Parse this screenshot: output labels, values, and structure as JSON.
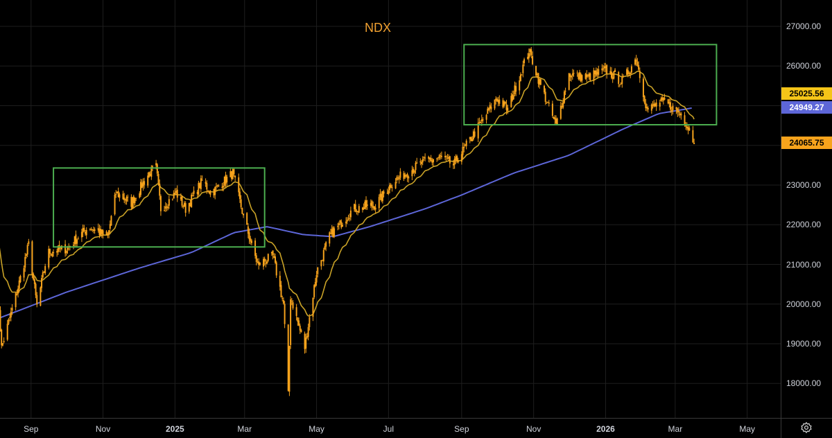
{
  "chart_data": {
    "type": "candlestick",
    "title": "NDX",
    "y_axis": {
      "ticks": [
        "27000.00",
        "26000.00",
        "25000.00",
        "24000.00",
        "23000.00",
        "22000.00",
        "21000.00",
        "20000.00",
        "19000.00",
        "18000.00"
      ],
      "min": 17100,
      "max": 27500
    },
    "x_axis": {
      "ticks": [
        {
          "label": "Sep",
          "date": "2024-09-01"
        },
        {
          "label": "Nov",
          "date": "2024-11-01"
        },
        {
          "label": "2025",
          "date": "2025-01-01",
          "bold": true
        },
        {
          "label": "Mar",
          "date": "2025-03-01"
        },
        {
          "label": "May",
          "date": "2025-05-01"
        },
        {
          "label": "Jul",
          "date": "2025-07-01"
        },
        {
          "label": "Sep",
          "date": "2025-09-01"
        },
        {
          "label": "Nov",
          "date": "2025-11-01"
        },
        {
          "label": "2026",
          "date": "2026-01-01",
          "bold": true
        },
        {
          "label": "Mar",
          "date": "2026-03-01"
        },
        {
          "label": "May",
          "date": "2026-05-01"
        }
      ],
      "start_date": "2024-08-01",
      "end_date": "2026-05-20"
    },
    "price_anchors": [
      [
        "2024-08-01",
        21800
      ],
      [
        "2024-08-07",
        18900
      ],
      [
        "2024-08-20",
        20300
      ],
      [
        "2024-08-30",
        21500
      ],
      [
        "2024-09-06",
        19950
      ],
      [
        "2024-09-15",
        21300
      ],
      [
        "2024-10-01",
        21400
      ],
      [
        "2024-10-20",
        21950
      ],
      [
        "2024-11-05",
        21700
      ],
      [
        "2024-11-12",
        22800
      ],
      [
        "2024-11-25",
        22550
      ],
      [
        "2024-12-10",
        23300
      ],
      [
        "2024-12-16",
        23450
      ],
      [
        "2024-12-20",
        22400
      ],
      [
        "2025-01-02",
        22800
      ],
      [
        "2025-01-10",
        22400
      ],
      [
        "2025-01-24",
        23100
      ],
      [
        "2025-02-01",
        22800
      ],
      [
        "2025-02-19",
        23300
      ],
      [
        "2025-03-01",
        22100
      ],
      [
        "2025-03-12",
        21000
      ],
      [
        "2025-03-25",
        21200
      ],
      [
        "2025-04-03",
        20000
      ],
      [
        "2025-04-07",
        17700
      ],
      [
        "2025-04-09",
        20200
      ],
      [
        "2025-04-21",
        18900
      ],
      [
        "2025-05-01",
        20800
      ],
      [
        "2025-05-12",
        21700
      ],
      [
        "2025-06-01",
        22400
      ],
      [
        "2025-06-20",
        22500
      ],
      [
        "2025-07-05",
        23100
      ],
      [
        "2025-08-01",
        23600
      ],
      [
        "2025-08-15",
        23700
      ],
      [
        "2025-08-25",
        23500
      ],
      [
        "2025-09-05",
        24000
      ],
      [
        "2025-10-01",
        25200
      ],
      [
        "2025-10-10",
        24900
      ],
      [
        "2025-10-28",
        26400
      ],
      [
        "2025-11-07",
        25500
      ],
      [
        "2025-11-20",
        24500
      ],
      [
        "2025-12-01",
        25800
      ],
      [
        "2025-12-15",
        25700
      ],
      [
        "2026-01-01",
        25900
      ],
      [
        "2026-01-15",
        25600
      ],
      [
        "2026-01-27",
        26200
      ],
      [
        "2026-02-05",
        24900
      ],
      [
        "2026-02-20",
        25100
      ],
      [
        "2026-03-05",
        24800
      ],
      [
        "2026-03-12",
        24500
      ],
      [
        "2026-03-17",
        24065.75
      ]
    ],
    "moving_averages": [
      {
        "color": "#c9a227",
        "last_value": 25025.56,
        "label": "25025.56"
      },
      {
        "color": "#5d66d8",
        "last_value": 24949.27,
        "label": "24949.27"
      }
    ],
    "ma200_anchors": [
      [
        "2024-08-01",
        19600
      ],
      [
        "2024-10-01",
        20300
      ],
      [
        "2024-12-01",
        20900
      ],
      [
        "2025-01-15",
        21300
      ],
      [
        "2025-02-20",
        21800
      ],
      [
        "2025-03-20",
        21950
      ],
      [
        "2025-04-20",
        21750
      ],
      [
        "2025-05-15",
        21700
      ],
      [
        "2025-06-15",
        21950
      ],
      [
        "2025-08-01",
        22400
      ],
      [
        "2025-09-01",
        22750
      ],
      [
        "2025-10-15",
        23300
      ],
      [
        "2025-12-01",
        23750
      ],
      [
        "2026-01-15",
        24400
      ],
      [
        "2026-02-15",
        24800
      ],
      [
        "2026-03-17",
        24950
      ]
    ],
    "last_price": {
      "value": 24065.75,
      "label": "24065.75",
      "color": "#f7a31c"
    },
    "candle_colors": {
      "up": "#f7a31c",
      "down": "#f7a31c"
    },
    "annotations": [
      {
        "type": "rectangle",
        "color": "#4caf50",
        "start": "2024-09-20",
        "end": "2025-03-18",
        "top": 23430,
        "bottom": 21440
      },
      {
        "type": "rectangle",
        "color": "#4caf50",
        "start": "2025-09-03",
        "end": "2026-04-05",
        "top": 26540,
        "bottom": 24520
      }
    ],
    "grid": true,
    "legend": "none"
  },
  "settings_icon": "gear-icon"
}
